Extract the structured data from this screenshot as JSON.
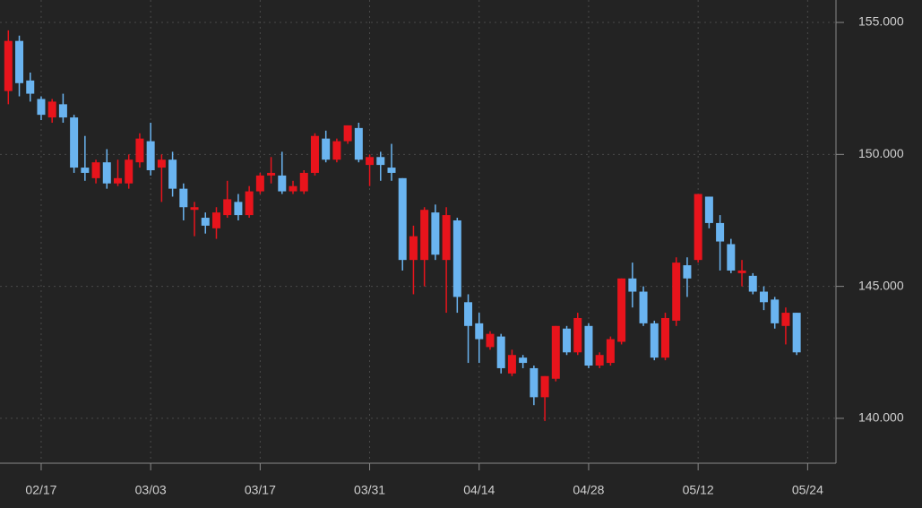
{
  "chart_data": {
    "type": "candlestick",
    "categories": [
      null,
      null,
      null,
      "02/17",
      null,
      null,
      null,
      null,
      null,
      null,
      null,
      null,
      null,
      "03/03",
      null,
      null,
      null,
      null,
      null,
      null,
      null,
      null,
      null,
      "03/17",
      null,
      null,
      null,
      null,
      null,
      null,
      null,
      null,
      null,
      "03/31",
      null,
      null,
      null,
      null,
      null,
      null,
      null,
      null,
      null,
      "04/14",
      null,
      null,
      null,
      null,
      null,
      null,
      null,
      null,
      null,
      "04/28",
      null,
      null,
      null,
      null,
      null,
      null,
      null,
      null,
      null,
      "05/12",
      null,
      null,
      null,
      null,
      null,
      null,
      null,
      null,
      null,
      "05/24"
    ],
    "open": [
      152.4,
      154.3,
      152.8,
      152.1,
      151.4,
      151.9,
      151.4,
      149.5,
      149.1,
      149.7,
      148.9,
      148.9,
      149.7,
      150.5,
      149.5,
      149.8,
      148.7,
      147.9,
      147.6,
      147.2,
      147.7,
      148.2,
      147.7,
      148.6,
      149.2,
      149.2,
      148.6,
      148.6,
      149.3,
      150.6,
      149.8,
      150.5,
      151.0,
      149.6,
      149.9,
      149.5,
      149.1,
      146.0,
      146.0,
      147.8,
      146.0,
      147.5,
      144.4,
      143.6,
      142.7,
      143.1,
      141.7,
      142.3,
      141.9,
      140.8,
      141.5,
      143.4,
      142.5,
      143.5,
      142.0,
      142.1,
      142.9,
      145.3,
      144.8,
      143.6,
      142.3,
      143.7,
      145.8,
      146.0,
      148.4,
      147.4,
      146.6,
      145.5,
      145.4,
      144.8,
      144.5,
      143.5,
      144.0,
      null
    ],
    "high": [
      154.7,
      154.5,
      153.1,
      152.2,
      152.1,
      152.3,
      151.5,
      150.7,
      149.8,
      150.2,
      149.8,
      150.0,
      150.8,
      151.2,
      150.0,
      150.1,
      148.9,
      148.2,
      147.8,
      148.0,
      149.0,
      148.5,
      148.8,
      149.3,
      149.9,
      150.1,
      149.0,
      149.4,
      150.8,
      150.9,
      150.6,
      151.1,
      151.2,
      150.0,
      150.1,
      150.4,
      149.1,
      147.3,
      148.0,
      148.1,
      148.0,
      147.6,
      144.7,
      144.0,
      143.3,
      143.2,
      142.6,
      142.4,
      142.0,
      141.6,
      143.5,
      143.5,
      144.0,
      143.6,
      142.5,
      143.1,
      145.3,
      145.9,
      145.0,
      143.7,
      144.0,
      146.1,
      146.1,
      148.5,
      148.4,
      147.7,
      146.8,
      146.0,
      145.5,
      145.0,
      144.6,
      144.2,
      144.0,
      null
    ],
    "low": [
      151.9,
      152.2,
      152.0,
      151.3,
      151.2,
      151.2,
      149.3,
      149.0,
      148.9,
      148.7,
      148.8,
      148.7,
      149.5,
      149.2,
      148.2,
      148.4,
      147.5,
      146.9,
      147.0,
      146.8,
      147.6,
      147.5,
      147.6,
      148.5,
      148.9,
      148.5,
      148.5,
      148.5,
      149.2,
      149.7,
      149.7,
      150.4,
      149.7,
      148.8,
      149.0,
      149.0,
      145.6,
      144.7,
      145.0,
      146.0,
      144.0,
      144.0,
      142.1,
      142.1,
      142.6,
      141.7,
      141.6,
      141.9,
      140.5,
      139.9,
      141.4,
      142.4,
      142.4,
      141.9,
      141.9,
      142.0,
      142.8,
      144.2,
      143.5,
      142.2,
      142.2,
      143.5,
      144.6,
      145.9,
      147.2,
      145.6,
      145.5,
      145.0,
      144.7,
      144.1,
      143.4,
      142.8,
      142.4,
      null
    ],
    "close": [
      154.3,
      152.7,
      152.3,
      151.5,
      152.0,
      151.4,
      149.5,
      149.3,
      149.7,
      148.9,
      149.1,
      149.8,
      150.6,
      149.4,
      149.8,
      148.7,
      148.0,
      148.0,
      147.3,
      147.8,
      148.3,
      147.7,
      148.6,
      149.2,
      149.3,
      148.6,
      148.8,
      149.3,
      150.7,
      149.8,
      150.5,
      151.1,
      149.8,
      149.9,
      149.6,
      149.3,
      146.0,
      146.9,
      147.9,
      146.2,
      147.7,
      144.6,
      143.5,
      143.0,
      143.2,
      141.9,
      142.4,
      142.1,
      140.8,
      141.6,
      143.5,
      142.5,
      143.8,
      142.0,
      142.4,
      143.0,
      145.3,
      144.8,
      143.6,
      142.3,
      143.8,
      145.9,
      145.3,
      148.5,
      147.4,
      146.7,
      145.6,
      145.6,
      144.8,
      144.4,
      143.6,
      144.0,
      142.5,
      null
    ],
    "up_color": "#e8141c",
    "down_color": "#6ab4f0",
    "ylim": [
      138.3,
      155.85
    ],
    "yticks": [
      {
        "value": 140,
        "label": "140.000"
      },
      {
        "value": 145,
        "label": "145.000"
      },
      {
        "value": 150,
        "label": "150.000"
      },
      {
        "value": 155,
        "label": "155.000"
      }
    ],
    "grid": true,
    "y_axis_side": "right"
  }
}
